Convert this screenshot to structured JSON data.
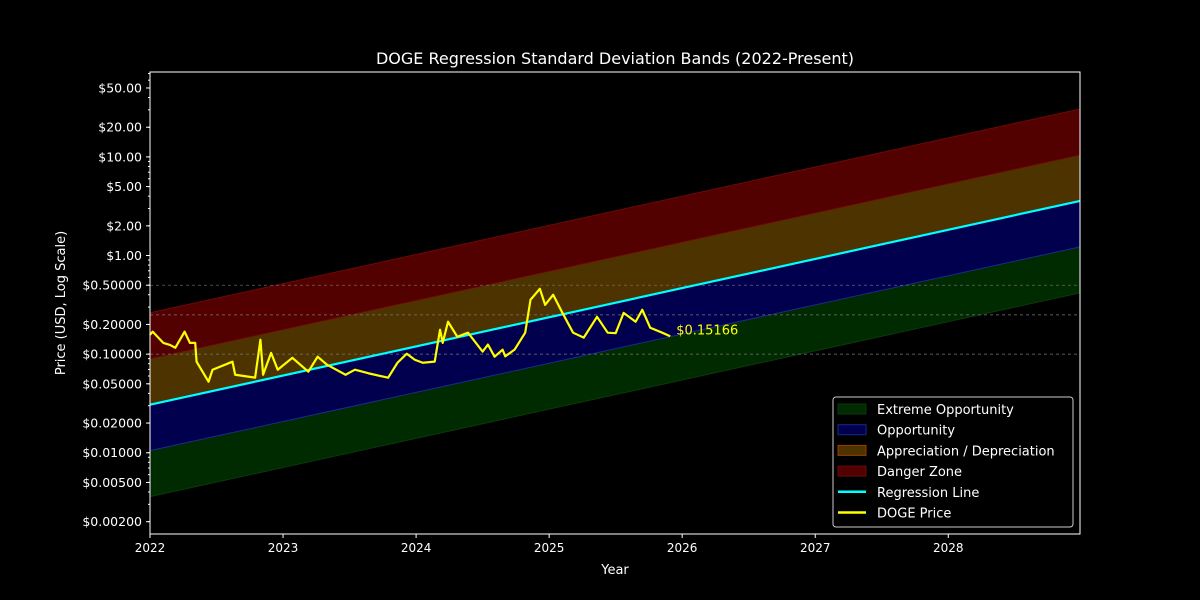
{
  "chart_data": {
    "type": "line",
    "title": "DOGE Regression Standard Deviation Bands (2022-Present)",
    "xlabel": "Year",
    "ylabel": "Price (USD, Log Scale)",
    "xlim": [
      2022,
      2028.99
    ],
    "ylim": [
      0.0015,
      72.6
    ],
    "y_scale": "log",
    "x_ticks": [
      2022,
      2023,
      2024,
      2025,
      2026,
      2027,
      2028
    ],
    "x_tick_labels": [
      "2022",
      "2023",
      "2024",
      "2025",
      "2026",
      "2027",
      "2028"
    ],
    "y_ticks": [
      0.002,
      0.005,
      0.01,
      0.02,
      0.05,
      0.1,
      0.2,
      0.5,
      1,
      2,
      5,
      10,
      20,
      50
    ],
    "y_tick_labels": [
      "$0.00200",
      "$0.00500",
      "$0.01000",
      "$0.02000",
      "$0.05000",
      "$0.10000",
      "$0.20000",
      "$0.50000",
      "$1.00",
      "$2.00",
      "$5.00",
      "$10.00",
      "$20.00",
      "$50.00"
    ],
    "grid_lines_y": [
      0.1,
      0.25,
      0.5
    ],
    "legend_position": "bottom-right",
    "regression": {
      "x": [
        2022,
        2028.99
      ],
      "y": [
        0.0307,
        3.58
      ]
    },
    "band_sigma_log10": 0.466,
    "bands": [
      {
        "name": "Extreme Opportunity",
        "from_sigma": -2,
        "to_sigma": -1,
        "color": "#002a00",
        "edge": "#0a3a0a"
      },
      {
        "name": "Opportunity",
        "from_sigma": -1,
        "to_sigma": 0,
        "color": "#00004f",
        "edge": "#1a2a8a"
      },
      {
        "name": "Appreciation / Depreciation",
        "from_sigma": 0,
        "to_sigma": 1,
        "color": "#4d3300",
        "edge": "#a03a00"
      },
      {
        "name": "Danger Zone",
        "from_sigma": 1,
        "to_sigma": 2,
        "color": "#530000",
        "edge": "#6a0a0a"
      }
    ],
    "series": [
      {
        "name": "Regression Line",
        "color": "#00ffff"
      },
      {
        "name": "DOGE Price",
        "color": "#ffff00",
        "x": [
          2022.0,
          2022.02,
          2022.05,
          2022.1,
          2022.15,
          2022.19,
          2022.26,
          2022.3,
          2022.34,
          2022.35,
          2022.44,
          2022.47,
          2022.62,
          2022.64,
          2022.79,
          2022.83,
          2022.85,
          2022.91,
          2022.96,
          2023.07,
          2023.19,
          2023.26,
          2023.33,
          2023.47,
          2023.54,
          2023.64,
          2023.79,
          2023.86,
          2023.93,
          2023.99,
          2024.05,
          2024.14,
          2024.18,
          2024.2,
          2024.24,
          2024.31,
          2024.39,
          2024.5,
          2024.54,
          2024.59,
          2024.65,
          2024.67,
          2024.74,
          2024.82,
          2024.86,
          2024.93,
          2024.97,
          2025.03,
          2025.1,
          2025.18,
          2025.26,
          2025.36,
          2025.44,
          2025.5,
          2025.56,
          2025.65,
          2025.7,
          2025.76,
          2025.85,
          2025.91
        ],
        "y": [
          0.157,
          0.169,
          0.153,
          0.13,
          0.124,
          0.116,
          0.169,
          0.13,
          0.13,
          0.0838,
          0.0525,
          0.0695,
          0.0838,
          0.0618,
          0.0577,
          0.14,
          0.0618,
          0.103,
          0.0695,
          0.0918,
          0.0664,
          0.0942,
          0.0782,
          0.0618,
          0.0695,
          0.064,
          0.0577,
          0.0818,
          0.101,
          0.0877,
          0.0818,
          0.084,
          0.177,
          0.13,
          0.213,
          0.15,
          0.165,
          0.106,
          0.125,
          0.0942,
          0.111,
          0.095,
          0.111,
          0.165,
          0.356,
          0.46,
          0.316,
          0.4,
          0.262,
          0.165,
          0.147,
          0.239,
          0.165,
          0.163,
          0.262,
          0.213,
          0.282,
          0.185,
          0.165,
          0.15166
        ]
      }
    ],
    "annotation": "$0.15166"
  }
}
